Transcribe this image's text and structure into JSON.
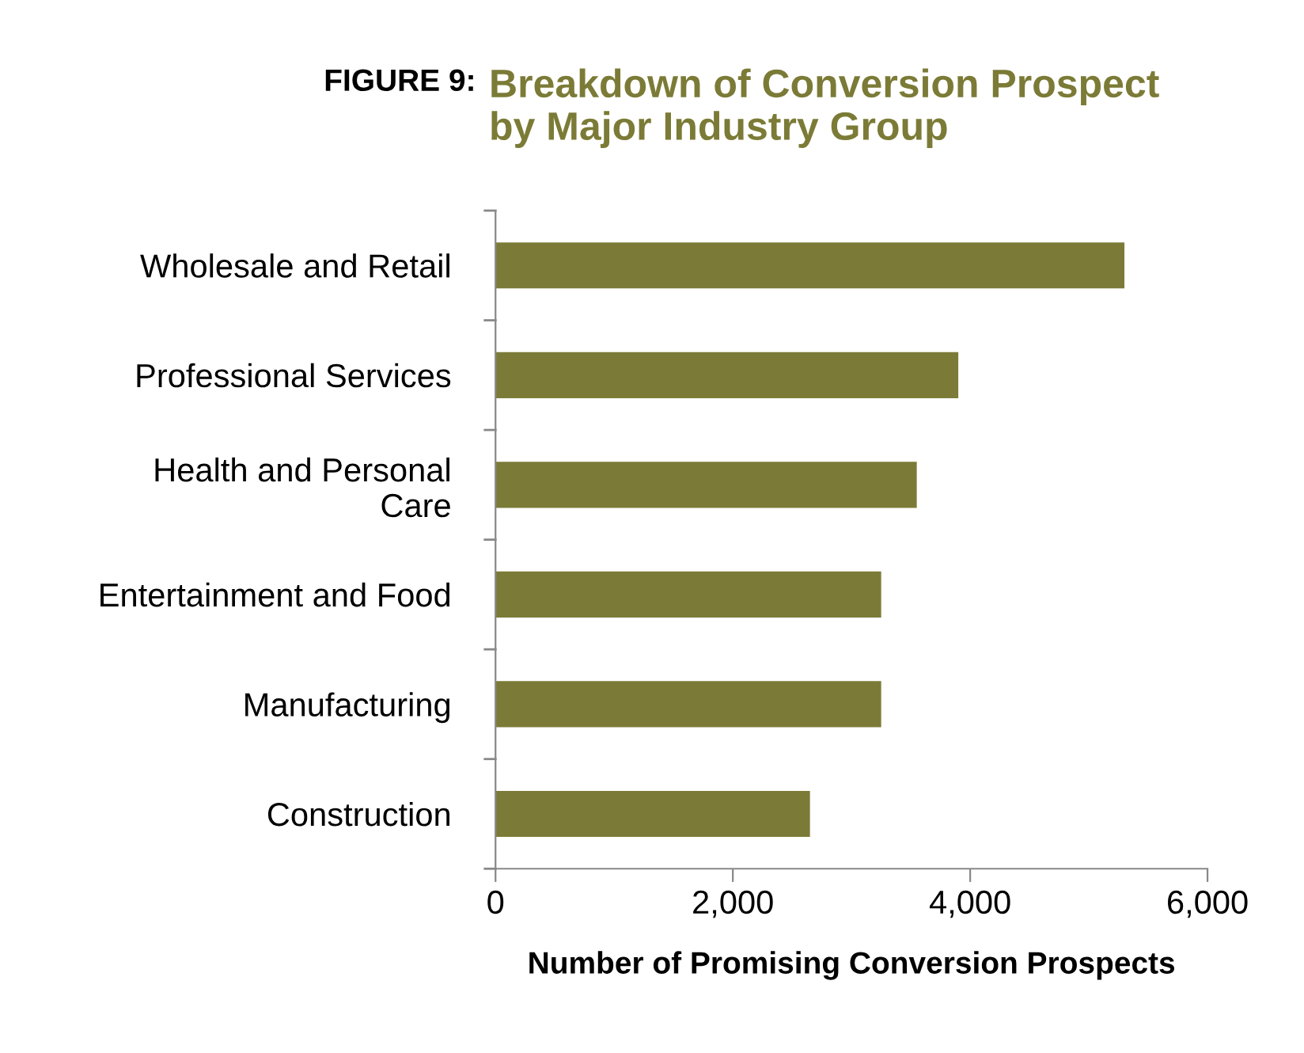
{
  "chart_data": {
    "type": "bar",
    "orientation": "horizontal",
    "title": "Breakdown of Conversion Prospect\nby Major Industry Group",
    "annotations": [
      "FIGURE 9:"
    ],
    "categories": [
      "Wholesale and Retail",
      "Professional Services",
      "Health and Personal\nCare",
      "Entertainment and Food",
      "Manufacturing",
      "Construction"
    ],
    "values": [
      5300,
      3900,
      3550,
      3250,
      3250,
      2650
    ],
    "color": "#7b7b37",
    "xlim": [
      0,
      6000
    ],
    "xticks": [
      0,
      {
        "value": 2000,
        "label": "2,000"
      },
      {
        "value": 4000,
        "label": "4,000"
      },
      {
        "value": 6000,
        "label": "6,000"
      }
    ],
    "xlabel": "Number of Promising Conversion Prospects",
    "grid": false,
    "legend": false
  }
}
